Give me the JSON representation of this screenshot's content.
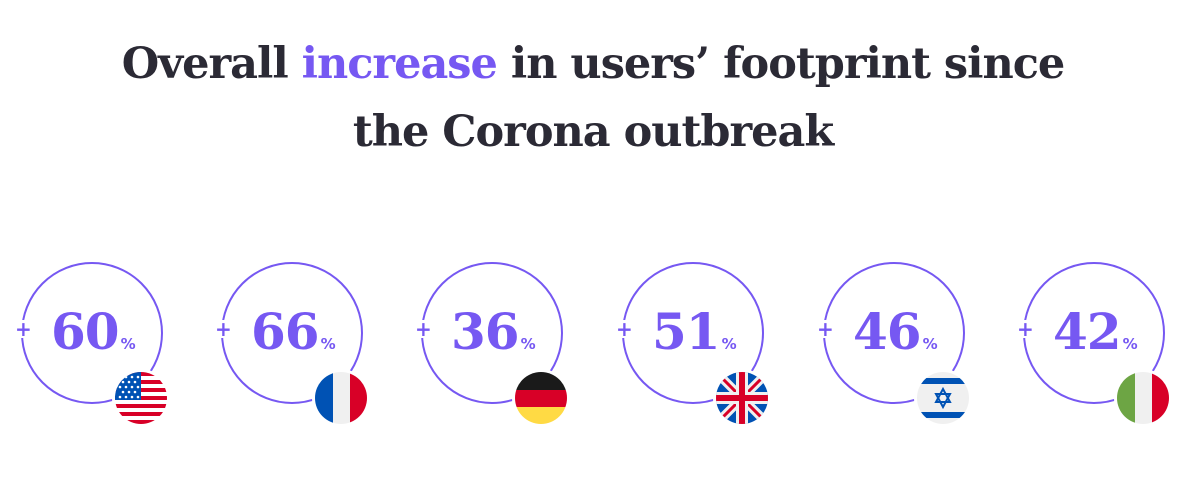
{
  "headline": {
    "part1": "Overall ",
    "accent": "increase",
    "part2": " in users’ footprint since",
    "line2": "the Corona outbreak"
  },
  "colors": {
    "accent": "#7658f2",
    "text": "#2b2a35"
  },
  "stats": [
    {
      "sign": "+",
      "value": "60",
      "unit": "%",
      "flag_icon": "usa-flag-icon"
    },
    {
      "sign": "+",
      "value": "66",
      "unit": "%",
      "flag_icon": "france-flag-icon"
    },
    {
      "sign": "+",
      "value": "36",
      "unit": "%",
      "flag_icon": "germany-flag-icon"
    },
    {
      "sign": "+",
      "value": "51",
      "unit": "%",
      "flag_icon": "uk-flag-icon"
    },
    {
      "sign": "+",
      "value": "46",
      "unit": "%",
      "flag_icon": "israel-flag-icon"
    },
    {
      "sign": "+",
      "value": "42",
      "unit": "%",
      "flag_icon": "italy-flag-icon"
    }
  ]
}
